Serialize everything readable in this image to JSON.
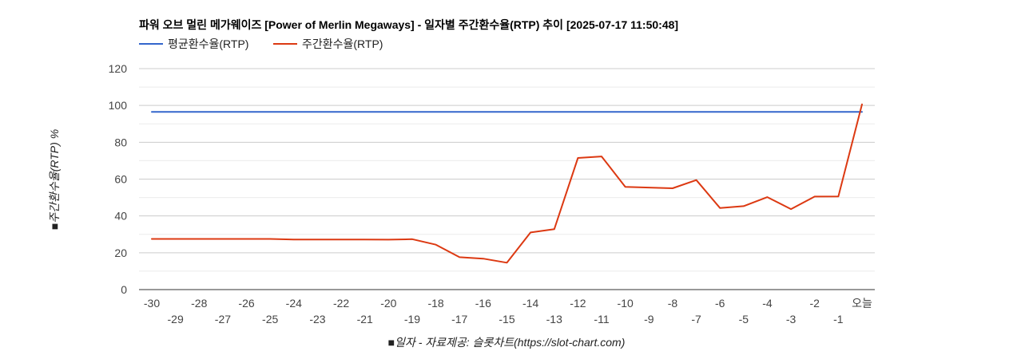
{
  "chart_data": {
    "type": "line",
    "title": "파워 오브 멀린 메가웨이즈 [Power of Merlin Megaways] - 일자별 주간환수율(RTP) 추이 [2025-07-17 11:50:48]",
    "xlabel": "■일자 - 자료제공: 슬롯차트(https://slot-chart.com)",
    "ylabel": "■주간환수율(RTP) %",
    "ylim": [
      0,
      120
    ],
    "yticks": [
      0,
      20,
      40,
      60,
      80,
      100,
      120
    ],
    "grid": true,
    "legend_position": "top-left",
    "categories": [
      "-30",
      "-29",
      "-28",
      "-27",
      "-26",
      "-25",
      "-24",
      "-23",
      "-22",
      "-21",
      "-20",
      "-19",
      "-18",
      "-17",
      "-16",
      "-15",
      "-14",
      "-13",
      "-12",
      "-11",
      "-10",
      "-9",
      "-8",
      "-7",
      "-6",
      "-5",
      "-4",
      "-3",
      "-2",
      "-1",
      "오늘"
    ],
    "series": [
      {
        "name": "평균환수율(RTP)",
        "color": "#3366cc",
        "values": [
          96.5,
          96.5,
          96.5,
          96.5,
          96.5,
          96.5,
          96.5,
          96.5,
          96.5,
          96.5,
          96.5,
          96.5,
          96.5,
          96.5,
          96.5,
          96.5,
          96.5,
          96.5,
          96.5,
          96.5,
          96.5,
          96.5,
          96.5,
          96.5,
          96.5,
          96.5,
          96.5,
          96.5,
          96.5,
          96.5,
          96.5
        ]
      },
      {
        "name": "주간환수율(RTP)",
        "color": "#dc3912",
        "values": [
          27.5,
          27.5,
          27.5,
          27.5,
          27.5,
          27.5,
          27.2,
          27.2,
          27.2,
          27.2,
          27.1,
          27.4,
          24.4,
          17.6,
          16.8,
          14.6,
          31.0,
          32.8,
          71.5,
          72.3,
          55.8,
          55.4,
          55.0,
          59.5,
          44.3,
          45.3,
          50.2,
          43.7,
          50.5,
          50.6,
          100.6
        ]
      }
    ]
  }
}
